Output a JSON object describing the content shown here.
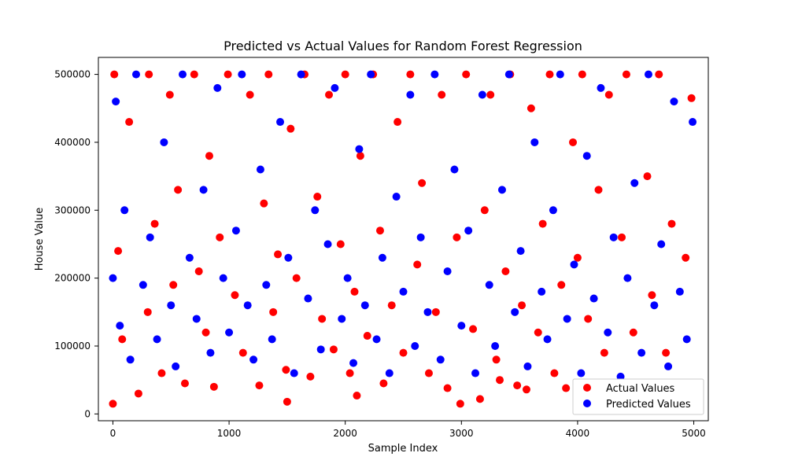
{
  "chart_data": {
    "type": "scatter",
    "title": "Predicted vs Actual Values for Random Forest Regression",
    "xlabel": "Sample Index",
    "ylabel": "House Value",
    "xlim": [
      -125,
      5125
    ],
    "ylim": [
      -10000,
      525000
    ],
    "x_ticks": [
      0,
      1000,
      2000,
      3000,
      4000,
      5000
    ],
    "y_ticks": [
      0,
      100000,
      200000,
      300000,
      400000,
      500000
    ],
    "grid": false,
    "legend_position": "lower-right",
    "series": [
      {
        "name": "Actual Values",
        "color": "#ff0000",
        "marker": "circle",
        "x": [
          0,
          12,
          45,
          80,
          140,
          220,
          300,
          310,
          360,
          420,
          490,
          520,
          560,
          620,
          700,
          740,
          800,
          830,
          870,
          920,
          990,
          1050,
          1120,
          1180,
          1260,
          1300,
          1340,
          1380,
          1420,
          1490,
          1500,
          1530,
          1580,
          1650,
          1700,
          1760,
          1800,
          1860,
          1900,
          1960,
          2000,
          2040,
          2080,
          2100,
          2130,
          2190,
          2240,
          2300,
          2330,
          2400,
          2450,
          2500,
          2560,
          2620,
          2660,
          2720,
          2780,
          2830,
          2880,
          2960,
          2990,
          3040,
          3100,
          3160,
          3200,
          3250,
          3300,
          3330,
          3380,
          3420,
          3480,
          3520,
          3560,
          3600,
          3660,
          3700,
          3760,
          3800,
          3860,
          3900,
          3960,
          4000,
          4040,
          4090,
          4120,
          4180,
          4230,
          4270,
          4320,
          4380,
          4420,
          4480,
          4540,
          4600,
          4640,
          4700,
          4760,
          4810,
          4860,
          4930,
          4980
        ],
        "y": [
          15000,
          500000,
          240000,
          110000,
          430000,
          30000,
          150000,
          500000,
          280000,
          60000,
          470000,
          190000,
          330000,
          45000,
          500000,
          210000,
          120000,
          380000,
          40000,
          260000,
          500000,
          175000,
          90000,
          470000,
          42000,
          310000,
          500000,
          150000,
          235000,
          65000,
          18000,
          420000,
          200000,
          500000,
          55000,
          320000,
          140000,
          470000,
          95000,
          250000,
          500000,
          60000,
          180000,
          27000,
          380000,
          115000,
          500000,
          270000,
          45000,
          160000,
          430000,
          90000,
          500000,
          220000,
          340000,
          60000,
          150000,
          470000,
          38000,
          260000,
          15000,
          500000,
          125000,
          22000,
          300000,
          470000,
          80000,
          50000,
          210000,
          500000,
          42000,
          160000,
          36000,
          450000,
          120000,
          280000,
          500000,
          60000,
          190000,
          38000,
          400000,
          230000,
          500000,
          140000,
          45000,
          330000,
          90000,
          470000,
          43000,
          260000,
          500000,
          120000,
          38000,
          350000,
          175000,
          500000,
          90000,
          280000,
          40000,
          230000,
          465000
        ]
      },
      {
        "name": "Predicted Values",
        "color": "#0000ff",
        "marker": "circle",
        "x": [
          0,
          25,
          60,
          100,
          150,
          200,
          260,
          320,
          380,
          440,
          500,
          540,
          600,
          660,
          720,
          780,
          840,
          900,
          950,
          1000,
          1060,
          1110,
          1160,
          1210,
          1270,
          1320,
          1370,
          1440,
          1510,
          1560,
          1620,
          1680,
          1740,
          1790,
          1850,
          1910,
          1970,
          2020,
          2070,
          2120,
          2170,
          2220,
          2270,
          2320,
          2380,
          2440,
          2500,
          2560,
          2600,
          2650,
          2710,
          2770,
          2820,
          2880,
          2940,
          3000,
          3060,
          3120,
          3180,
          3240,
          3290,
          3350,
          3410,
          3460,
          3510,
          3570,
          3630,
          3690,
          3740,
          3790,
          3850,
          3910,
          3970,
          4030,
          4080,
          4140,
          4200,
          4260,
          4310,
          4370,
          4430,
          4490,
          4550,
          4610,
          4660,
          4720,
          4780,
          4830,
          4880,
          4940,
          4990
        ],
        "y": [
          200000,
          460000,
          130000,
          300000,
          80000,
          500000,
          190000,
          260000,
          110000,
          400000,
          160000,
          70000,
          500000,
          230000,
          140000,
          330000,
          90000,
          480000,
          200000,
          120000,
          270000,
          500000,
          160000,
          80000,
          360000,
          190000,
          110000,
          430000,
          230000,
          60000,
          500000,
          170000,
          300000,
          95000,
          250000,
          480000,
          140000,
          200000,
          75000,
          390000,
          160000,
          500000,
          110000,
          230000,
          60000,
          320000,
          180000,
          470000,
          100000,
          260000,
          150000,
          500000,
          80000,
          210000,
          360000,
          130000,
          270000,
          60000,
          470000,
          190000,
          100000,
          330000,
          500000,
          150000,
          240000,
          70000,
          400000,
          180000,
          110000,
          300000,
          500000,
          140000,
          220000,
          60000,
          380000,
          170000,
          480000,
          120000,
          260000,
          55000,
          200000,
          340000,
          90000,
          500000,
          160000,
          250000,
          70000,
          460000,
          180000,
          110000,
          430000
        ]
      }
    ]
  }
}
